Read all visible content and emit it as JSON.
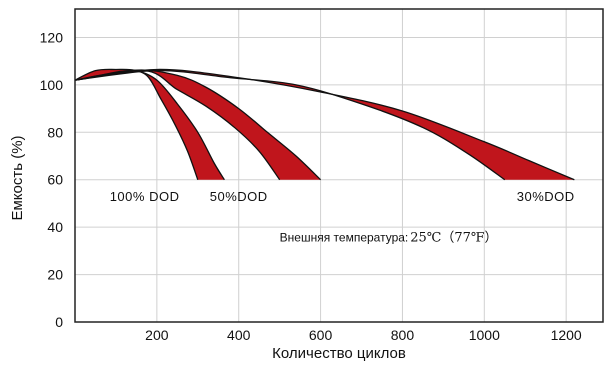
{
  "chart_data": {
    "type": "area",
    "xlabel": "Количество циклов",
    "ylabel": "Емкость (%)",
    "xlim": [
      0,
      1290
    ],
    "ylim": [
      0,
      132
    ],
    "x_ticks": [
      200,
      400,
      600,
      800,
      1000,
      1200
    ],
    "y_ticks": [
      0,
      20,
      40,
      60,
      80,
      100,
      120
    ],
    "grid": true,
    "fill_color": "#c0151c",
    "series": [
      {
        "name": "100% DOD",
        "upper": [
          [
            0,
            102
          ],
          [
            50,
            106
          ],
          [
            100,
            106.5
          ],
          [
            150,
            106
          ],
          [
            200,
            102
          ],
          [
            250,
            92
          ],
          [
            300,
            80
          ],
          [
            340,
            67
          ],
          [
            365,
            60
          ]
        ],
        "lower": [
          [
            0,
            102
          ],
          [
            60,
            104
          ],
          [
            130,
            106
          ],
          [
            175,
            104
          ],
          [
            210,
            94
          ],
          [
            245,
            83
          ],
          [
            275,
            72
          ],
          [
            300,
            60
          ]
        ]
      },
      {
        "name": "50%DOD",
        "upper": [
          [
            0,
            102
          ],
          [
            150,
            106.2
          ],
          [
            250,
            104
          ],
          [
            320,
            99
          ],
          [
            400,
            90
          ],
          [
            470,
            80
          ],
          [
            540,
            70
          ],
          [
            600,
            60
          ]
        ],
        "lower": [
          [
            0,
            102
          ],
          [
            170,
            106
          ],
          [
            250,
            98
          ],
          [
            320,
            91
          ],
          [
            390,
            82
          ],
          [
            450,
            72
          ],
          [
            500,
            60
          ]
        ]
      },
      {
        "name": "30%DOD",
        "upper": [
          [
            0,
            102
          ],
          [
            200,
            106.5
          ],
          [
            400,
            103
          ],
          [
            600,
            97
          ],
          [
            800,
            89
          ],
          [
            1000,
            76
          ],
          [
            1110,
            68
          ],
          [
            1220,
            60
          ]
        ],
        "lower": [
          [
            0,
            102
          ],
          [
            200,
            106
          ],
          [
            380,
            103
          ],
          [
            540,
            100
          ],
          [
            700,
            92
          ],
          [
            850,
            82
          ],
          [
            960,
            71
          ],
          [
            1050,
            60
          ]
        ]
      }
    ],
    "series_labels": [
      {
        "text": "100% DOD",
        "x": 170,
        "y": 51
      },
      {
        "text": "50%DOD",
        "x": 400,
        "y": 51
      },
      {
        "text": "30%DOD",
        "x": 1150,
        "y": 51
      }
    ],
    "annotation": {
      "text": "Внешняя температура:",
      "value": "25℃（77℉）",
      "x": 500,
      "y": 34
    }
  }
}
